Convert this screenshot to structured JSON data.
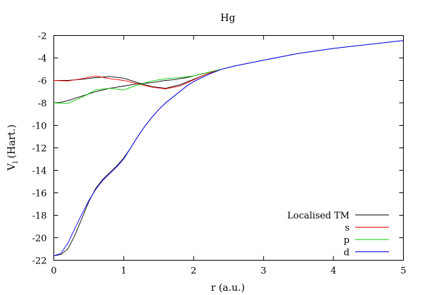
{
  "chart_data": {
    "type": "line",
    "title": "Hg",
    "xlabel": "r (a.u.)",
    "ylabel": "V",
    "ylabel_sub": "l",
    "ylabel_suffix": "(Hart.)",
    "xlim": [
      0,
      5
    ],
    "ylim": [
      -22,
      -2
    ],
    "xticks": [
      0,
      1,
      2,
      3,
      4,
      5
    ],
    "yticks": [
      -22,
      -20,
      -18,
      -16,
      -14,
      -12,
      -10,
      -8,
      -6,
      -4,
      -2
    ],
    "grid": false,
    "legend_position": "bottom-right",
    "series": [
      {
        "name": "Localised TM",
        "color": "#000000",
        "x": [
          0,
          0.1,
          0.2,
          0.3,
          0.4,
          0.5,
          0.6,
          0.7,
          0.8,
          0.9,
          1.0,
          1.1,
          1.2,
          1.3,
          1.4,
          1.5,
          1.6,
          1.7,
          1.8,
          1.9,
          2.0,
          2.2,
          2.4,
          2.6,
          2.8,
          3.0,
          3.5,
          4.0,
          4.5,
          5.0
        ],
        "values": [
          -8.0,
          -7.95,
          -7.8,
          -7.6,
          -7.4,
          -7.2,
          -7.0,
          -6.85,
          -6.7,
          -6.6,
          -6.5,
          -6.4,
          -6.3,
          -6.25,
          -6.2,
          -6.1,
          -6.0,
          -5.95,
          -5.85,
          -5.75,
          -5.6,
          -5.3,
          -5.0,
          -4.7,
          -4.45,
          -4.2,
          -3.6,
          -3.15,
          -2.8,
          -2.45
        ]
      },
      {
        "name": "Localised TM",
        "color": "#000000",
        "x": [
          0,
          0.2,
          0.4,
          0.6,
          0.8,
          1.0,
          1.2,
          1.4,
          1.6,
          1.8,
          2.0,
          2.2,
          2.4
        ],
        "values": [
          -6.0,
          -6.0,
          -5.9,
          -5.75,
          -5.65,
          -5.8,
          -6.2,
          -6.55,
          -6.7,
          -6.4,
          -5.9,
          -5.4,
          -5.0
        ]
      },
      {
        "name": "Localised TM",
        "color": "#000000",
        "x": [
          0,
          0.1,
          0.2,
          0.3,
          0.4,
          0.5,
          0.6,
          0.7,
          0.8,
          0.9,
          1.0,
          1.1,
          1.2,
          1.3,
          1.4,
          1.5,
          1.6,
          1.7,
          1.8,
          1.9,
          2.0,
          2.2,
          2.4,
          2.6
        ],
        "values": [
          -21.6,
          -21.5,
          -21.0,
          -19.8,
          -18.3,
          -16.8,
          -15.6,
          -14.8,
          -14.2,
          -13.6,
          -12.9,
          -12.0,
          -11.0,
          -10.1,
          -9.3,
          -8.6,
          -8.0,
          -7.5,
          -7.0,
          -6.5,
          -6.1,
          -5.5,
          -5.0,
          -4.7
        ]
      },
      {
        "name": "s",
        "color": "#ff0000",
        "x": [
          0,
          0.2,
          0.4,
          0.6,
          0.8,
          1.0,
          1.2,
          1.4,
          1.6,
          1.8,
          2.0,
          2.2,
          2.4
        ],
        "values": [
          -6.0,
          -6.05,
          -5.85,
          -5.6,
          -5.85,
          -6.0,
          -6.3,
          -6.6,
          -6.75,
          -6.5,
          -5.95,
          -5.4,
          -5.0
        ]
      },
      {
        "name": "p",
        "color": "#00cc00",
        "x": [
          0,
          0.2,
          0.4,
          0.6,
          0.8,
          1.0,
          1.2,
          1.4,
          1.6,
          1.8,
          2.0,
          2.2,
          2.4
        ],
        "values": [
          -8.0,
          -8.05,
          -7.5,
          -6.85,
          -6.7,
          -6.85,
          -6.4,
          -6.05,
          -5.85,
          -5.75,
          -5.6,
          -5.3,
          -5.0
        ]
      },
      {
        "name": "d",
        "color": "#0000ff",
        "x": [
          0,
          0.1,
          0.2,
          0.3,
          0.4,
          0.5,
          0.6,
          0.7,
          0.8,
          0.9,
          1.0,
          1.1,
          1.2,
          1.3,
          1.4,
          1.5,
          1.6,
          1.7,
          1.8,
          1.9,
          2.0,
          2.2,
          2.4,
          2.6,
          2.8,
          3.0,
          3.5,
          4.0,
          4.5,
          5.0
        ],
        "values": [
          -21.6,
          -21.4,
          -20.5,
          -19.2,
          -17.9,
          -16.7,
          -15.7,
          -14.9,
          -14.3,
          -13.7,
          -13.0,
          -12.0,
          -11.0,
          -10.1,
          -9.3,
          -8.6,
          -8.0,
          -7.5,
          -7.0,
          -6.5,
          -6.1,
          -5.5,
          -5.0,
          -4.7,
          -4.45,
          -4.2,
          -3.6,
          -3.15,
          -2.8,
          -2.45
        ]
      }
    ],
    "legend": [
      {
        "label": "Localised TM",
        "color": "#000000"
      },
      {
        "label": "s",
        "color": "#ff0000"
      },
      {
        "label": "p",
        "color": "#00cc00"
      },
      {
        "label": "d",
        "color": "#0000ff"
      }
    ]
  }
}
